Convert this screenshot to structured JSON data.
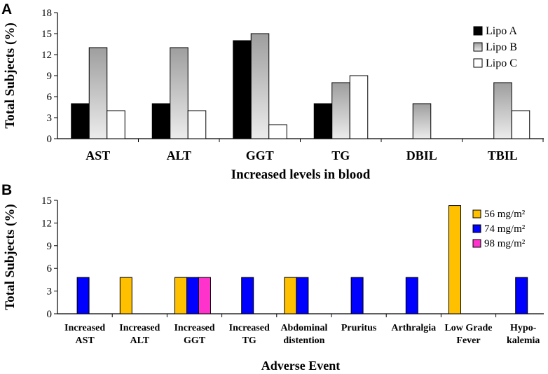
{
  "chart_data": [
    {
      "panel_label": "A",
      "type": "bar",
      "title": "",
      "xlabel": "Increased levels in blood",
      "ylabel": "Total Subjects (%)",
      "ylim": [
        0,
        18
      ],
      "yticks": [
        "0",
        "3",
        "6",
        "9",
        "12",
        "15",
        "18"
      ],
      "categories": [
        "AST",
        "ALT",
        "GGT",
        "TG",
        "DBIL",
        "TBIL"
      ],
      "legend_position": "top-right",
      "series": [
        {
          "name": "Lipo A",
          "color": "#000000",
          "values": [
            5,
            5,
            14,
            5,
            0,
            0
          ]
        },
        {
          "name": "Lipo B",
          "color": "#bdbdbd",
          "values": [
            13,
            13,
            15,
            8,
            5,
            8
          ]
        },
        {
          "name": "Lipo C",
          "color": "#ffffff",
          "values": [
            4,
            4,
            2,
            9,
            0,
            4
          ]
        }
      ]
    },
    {
      "panel_label": "B",
      "type": "bar",
      "title": "",
      "xlabel": "Adverse Event",
      "ylabel": "Total Subjects (%)",
      "ylim": [
        0,
        15
      ],
      "yticks": [
        "0",
        "3",
        "6",
        "9",
        "12",
        "15"
      ],
      "categories": [
        [
          "Increased",
          "AST"
        ],
        [
          "Increased",
          "ALT"
        ],
        [
          "Increased",
          "GGT"
        ],
        [
          "Increased",
          "TG"
        ],
        [
          "Abdominal",
          "distention"
        ],
        [
          "Pruritus"
        ],
        [
          "Arthralgia"
        ],
        [
          "Low Grade",
          "Fever"
        ],
        [
          "Hypo-",
          "kalemia"
        ]
      ],
      "legend_position": "top-right",
      "series": [
        {
          "name": "56 mg/m²",
          "color": "#ffc000",
          "values": [
            0,
            4.8,
            4.8,
            0,
            4.8,
            0,
            0,
            14.3,
            0
          ]
        },
        {
          "name": "74 mg/m²",
          "color": "#0000ff",
          "values": [
            4.8,
            0,
            4.8,
            4.8,
            4.8,
            4.8,
            4.8,
            0,
            4.8
          ]
        },
        {
          "name": "98 mg/m²",
          "color": "#ff33cc",
          "values": [
            0,
            0,
            4.8,
            0,
            0,
            0,
            0,
            0,
            0
          ]
        }
      ]
    }
  ]
}
